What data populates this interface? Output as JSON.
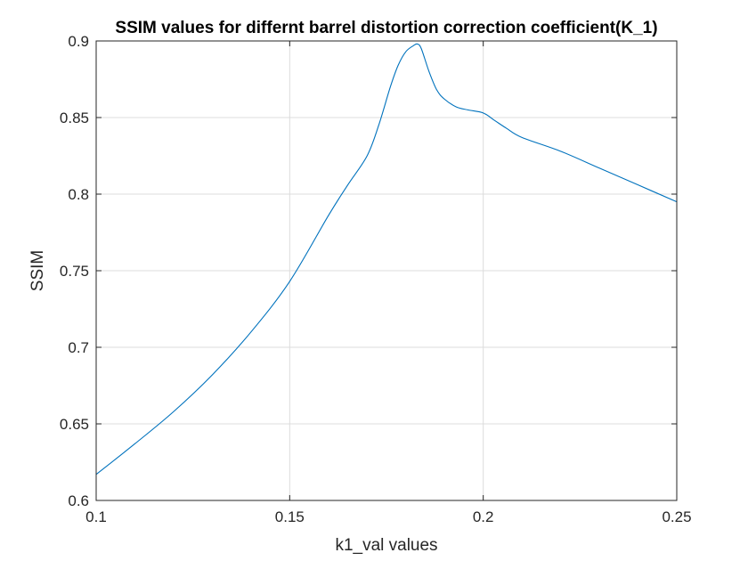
{
  "chart_data": {
    "type": "line",
    "title": "SSIM values for differnt barrel distortion correction coefficient(K_1)",
    "xlabel": "k1_val values",
    "ylabel": "SSIM",
    "xlim": [
      0.1,
      0.25
    ],
    "ylim": [
      0.6,
      0.9
    ],
    "xticks": [
      0.1,
      0.15,
      0.2,
      0.25
    ],
    "xtick_labels": [
      "0.1",
      "0.15",
      "0.2",
      "0.25"
    ],
    "yticks": [
      0.6,
      0.65,
      0.7,
      0.75,
      0.8,
      0.85,
      0.9
    ],
    "ytick_labels": [
      "0.6",
      "0.65",
      "0.7",
      "0.75",
      "0.8",
      "0.85",
      "0.9"
    ],
    "grid": true,
    "series": [
      {
        "color": "#0072BD",
        "x": [
          0.1,
          0.11,
          0.12,
          0.13,
          0.14,
          0.15,
          0.16,
          0.165,
          0.17,
          0.173,
          0.176,
          0.178,
          0.18,
          0.182,
          0.183,
          0.184,
          0.186,
          0.188,
          0.19,
          0.193,
          0.196,
          0.2,
          0.203,
          0.206,
          0.21,
          0.22,
          0.23,
          0.24,
          0.25
        ],
        "y": [
          0.617,
          0.637,
          0.658,
          0.682,
          0.71,
          0.743,
          0.786,
          0.806,
          0.825,
          0.845,
          0.87,
          0.884,
          0.893,
          0.897,
          0.898,
          0.895,
          0.88,
          0.868,
          0.862,
          0.857,
          0.855,
          0.853,
          0.848,
          0.843,
          0.837,
          0.828,
          0.817,
          0.806,
          0.795
        ]
      }
    ]
  }
}
